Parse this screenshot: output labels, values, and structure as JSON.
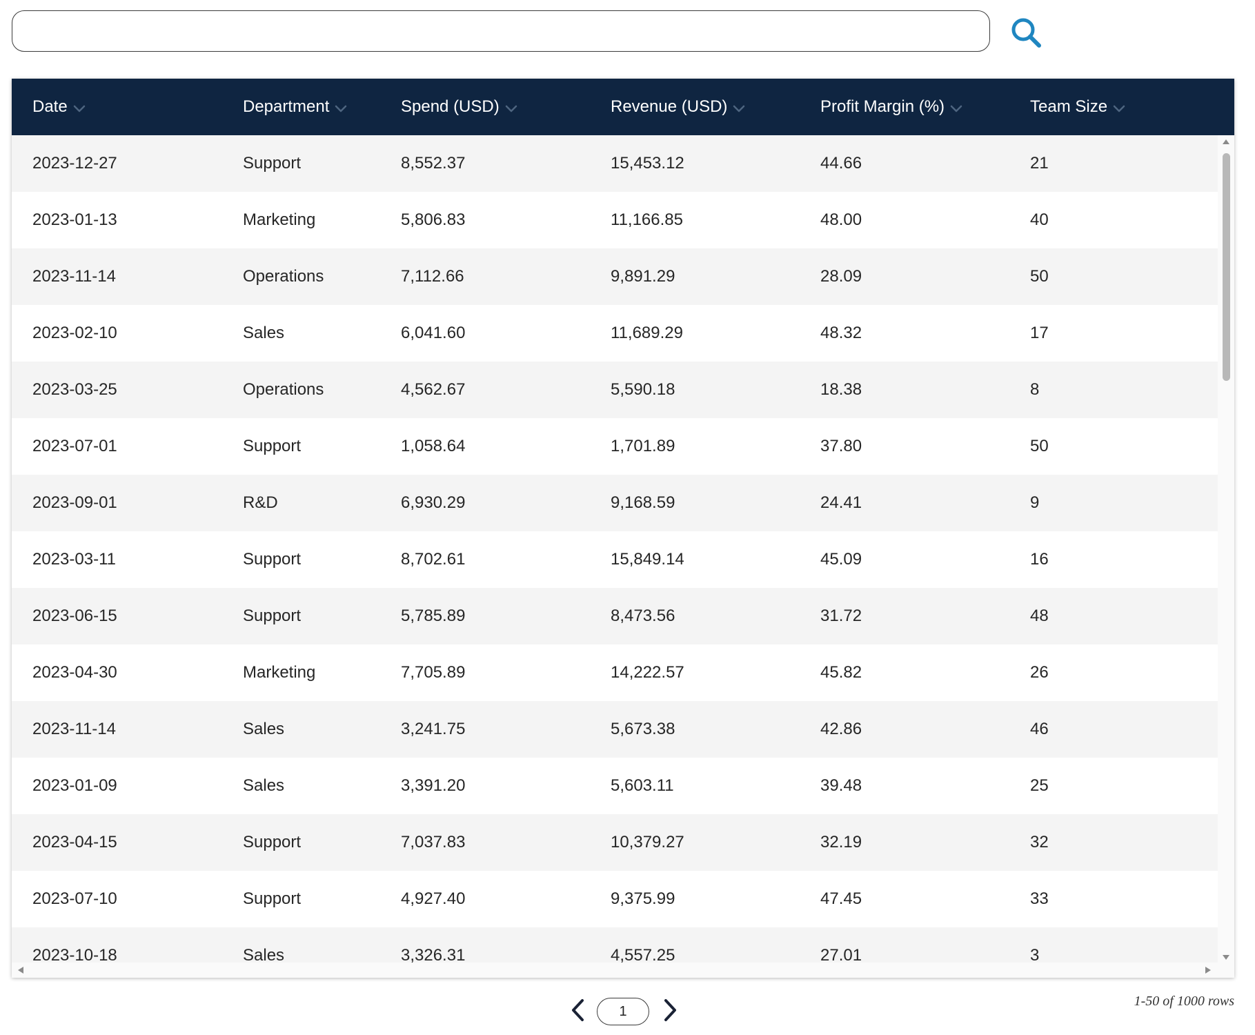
{
  "search": {
    "value": "",
    "icon": "search-icon",
    "icon_color": "#1f86c0"
  },
  "table": {
    "header_bg": "#0f2541",
    "columns": [
      {
        "label": "Date"
      },
      {
        "label": "Department"
      },
      {
        "label": "Spend (USD)"
      },
      {
        "label": "Revenue (USD)"
      },
      {
        "label": "Profit Margin (%)"
      },
      {
        "label": "Team Size"
      }
    ],
    "rows": [
      [
        "2023-12-27",
        "Support",
        "8,552.37",
        "15,453.12",
        "44.66",
        "21"
      ],
      [
        "2023-01-13",
        "Marketing",
        "5,806.83",
        "11,166.85",
        "48.00",
        "40"
      ],
      [
        "2023-11-14",
        "Operations",
        "7,112.66",
        "9,891.29",
        "28.09",
        "50"
      ],
      [
        "2023-02-10",
        "Sales",
        "6,041.60",
        "11,689.29",
        "48.32",
        "17"
      ],
      [
        "2023-03-25",
        "Operations",
        "4,562.67",
        "5,590.18",
        "18.38",
        "8"
      ],
      [
        "2023-07-01",
        "Support",
        "1,058.64",
        "1,701.89",
        "37.80",
        "50"
      ],
      [
        "2023-09-01",
        "R&D",
        "6,930.29",
        "9,168.59",
        "24.41",
        "9"
      ],
      [
        "2023-03-11",
        "Support",
        "8,702.61",
        "15,849.14",
        "45.09",
        "16"
      ],
      [
        "2023-06-15",
        "Support",
        "5,785.89",
        "8,473.56",
        "31.72",
        "48"
      ],
      [
        "2023-04-30",
        "Marketing",
        "7,705.89",
        "14,222.57",
        "45.82",
        "26"
      ],
      [
        "2023-11-14",
        "Sales",
        "3,241.75",
        "5,673.38",
        "42.86",
        "46"
      ],
      [
        "2023-01-09",
        "Sales",
        "3,391.20",
        "5,603.11",
        "39.48",
        "25"
      ],
      [
        "2023-04-15",
        "Support",
        "7,037.83",
        "10,379.27",
        "32.19",
        "32"
      ],
      [
        "2023-07-10",
        "Support",
        "4,927.40",
        "9,375.99",
        "47.45",
        "33"
      ],
      [
        "2023-10-18",
        "Sales",
        "3,326.31",
        "4,557.25",
        "27.01",
        "3"
      ]
    ]
  },
  "pagination": {
    "current_page": "1",
    "prev_icon": "chevron-left-icon",
    "next_icon": "chevron-right-icon",
    "row_count_text": "1-50 of 1000 rows"
  }
}
